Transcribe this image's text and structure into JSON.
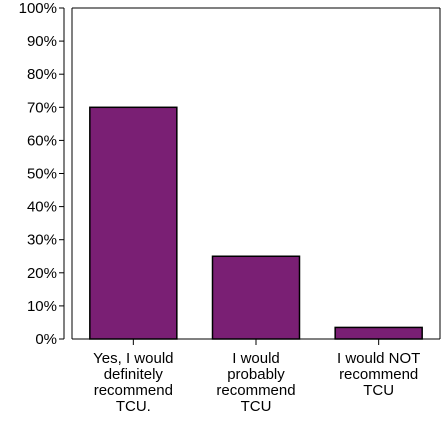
{
  "chart_data": {
    "type": "bar",
    "categories": [
      [
        "Yes, I would",
        "definitely",
        "recommend",
        "TCU."
      ],
      [
        "I would",
        "probably",
        "recommend",
        "TCU"
      ],
      [
        "I would NOT",
        "recommend",
        "TCU"
      ]
    ],
    "values": [
      70,
      25,
      3.5
    ],
    "ylim": [
      0,
      100
    ],
    "yticks": [
      "0%",
      "10%",
      "20%",
      "30%",
      "40%",
      "50%",
      "60%",
      "70%",
      "80%",
      "90%",
      "100%"
    ],
    "grid": false,
    "legend": "none",
    "bar_color": "#7A1F74",
    "bar_stroke": "#000000",
    "axis_color": "#000000"
  }
}
